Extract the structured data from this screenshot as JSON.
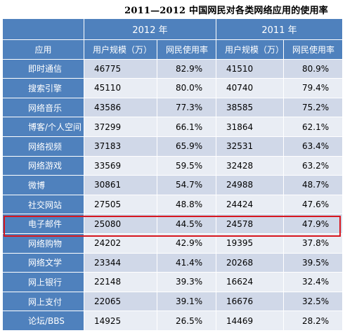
{
  "title": "2011—2012 中国网民对各类网络应用的使用率",
  "years": [
    "2012 年",
    "2011 年"
  ],
  "headers": {
    "app": "应用",
    "users": "用户规模（万）",
    "rate": "网民使用率"
  },
  "rows": [
    {
      "app": "即时通信",
      "u2012": "46775",
      "r2012": "82.9%",
      "u2011": "41510",
      "r2011": "80.9%"
    },
    {
      "app": "搜索引擎",
      "u2012": "45110",
      "r2012": "80.0%",
      "u2011": "40740",
      "r2011": "79.4%"
    },
    {
      "app": "网络音乐",
      "u2012": "43586",
      "r2012": "77.3%",
      "u2011": "38585",
      "r2011": "75.2%"
    },
    {
      "app": "博客/个人空间",
      "u2012": "37299",
      "r2012": "66.1%",
      "u2011": "31864",
      "r2011": "62.1%"
    },
    {
      "app": "网络视频",
      "u2012": "37183",
      "r2012": "65.9%",
      "u2011": "32531",
      "r2011": "63.4%"
    },
    {
      "app": "网络游戏",
      "u2012": "33569",
      "r2012": "59.5%",
      "u2011": "32428",
      "r2011": "63.2%"
    },
    {
      "app": "微博",
      "u2012": "30861",
      "r2012": "54.7%",
      "u2011": "24988",
      "r2011": "48.7%"
    },
    {
      "app": "社交网站",
      "u2012": "27505",
      "r2012": "48.8%",
      "u2011": "24424",
      "r2011": "47.6%"
    },
    {
      "app": "电子邮件",
      "u2012": "25080",
      "r2012": "44.5%",
      "u2011": "24578",
      "r2011": "47.9%"
    },
    {
      "app": "网络购物",
      "u2012": "24202",
      "r2012": "42.9%",
      "u2011": "19395",
      "r2011": "37.8%"
    },
    {
      "app": "网络文学",
      "u2012": "23344",
      "r2012": "41.4%",
      "u2011": "20268",
      "r2011": "39.5%"
    },
    {
      "app": "网上银行",
      "u2012": "22148",
      "r2012": "39.3%",
      "u2011": "16624",
      "r2011": "32.4%"
    },
    {
      "app": "网上支付",
      "u2012": "22065",
      "r2012": "39.1%",
      "u2011": "16676",
      "r2011": "32.5%"
    },
    {
      "app": "论坛/BBS",
      "u2012": "14925",
      "r2012": "26.5%",
      "u2011": "14469",
      "r2011": "28.2%"
    }
  ],
  "highlight_row": "电子邮件",
  "colors": {
    "header_blue": "#4f81bd",
    "row_dark": "#d0d8e8",
    "row_light": "#e9edf4",
    "highlight_red": "#d7161e"
  }
}
